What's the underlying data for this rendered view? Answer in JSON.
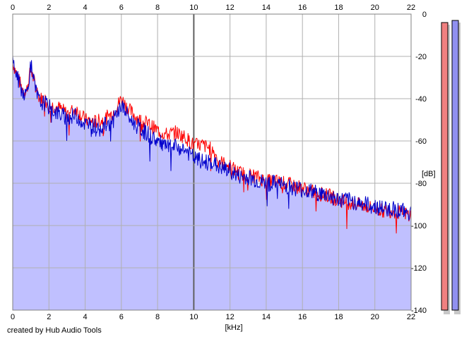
{
  "credit": "created by Hub Audio Tools",
  "colors": {
    "left_channel": "#ff0000",
    "right_channel": "#0000cc",
    "fill": "#c0c0ff",
    "grid": "#b0b0b0",
    "major_grid": "#606060",
    "meter_left": "#f08080",
    "meter_right": "#9090f0"
  },
  "chart_data": {
    "type": "line",
    "title": "",
    "xlabel": "[kHz]",
    "ylabel": "[dB]",
    "xlim": [
      0,
      22
    ],
    "ylim": [
      -140,
      0
    ],
    "x_ticks": [
      "0",
      "2",
      "4",
      "6",
      "8",
      "10",
      "12",
      "14",
      "16",
      "18",
      "20",
      "22"
    ],
    "y_ticks": [
      "0",
      "-20",
      "-40",
      "-60",
      "-80",
      "-100",
      "-120",
      "-140"
    ],
    "grid": true,
    "filled_area_under_right_channel": true,
    "series": [
      {
        "x": [
          0,
          0.25,
          0.5,
          0.75,
          1.0,
          1.25,
          1.5,
          1.75,
          2.0,
          2.5,
          3.0,
          3.5,
          4.0,
          4.5,
          5.0,
          5.5,
          6.0,
          6.5,
          7.0,
          7.5,
          8.0,
          8.5,
          9.0,
          9.5,
          10.0,
          10.5,
          11.0,
          11.5,
          12.0,
          12.5,
          13.0,
          13.5,
          14.0,
          14.5,
          15.0,
          15.5,
          16.0,
          16.5,
          17.0,
          17.5,
          18.0,
          18.5,
          19.0,
          19.5,
          20.0,
          20.5,
          21.0,
          21.5,
          22.0
        ],
        "values": [
          -23,
          -29,
          -35,
          -37,
          -26,
          -34,
          -40,
          -40,
          -43,
          -44,
          -47,
          -45,
          -50,
          -51,
          -50,
          -47,
          -40,
          -46,
          -50,
          -52,
          -55,
          -57,
          -56,
          -58,
          -62,
          -62,
          -64,
          -70,
          -72,
          -75,
          -76,
          -77,
          -79,
          -79,
          -80,
          -81,
          -82,
          -84,
          -85,
          -86,
          -88,
          -89,
          -90,
          -91,
          -92,
          -93,
          -93,
          -94,
          -95
        ]
      },
      {
        "x": [
          0,
          0.25,
          0.5,
          0.75,
          1.0,
          1.25,
          1.5,
          1.75,
          2.0,
          2.5,
          3.0,
          3.5,
          4.0,
          4.5,
          5.0,
          5.5,
          6.0,
          6.5,
          7.0,
          7.5,
          8.0,
          8.5,
          9.0,
          9.5,
          10.0,
          10.5,
          11.0,
          11.5,
          12.0,
          12.5,
          13.0,
          13.5,
          14.0,
          14.5,
          15.0,
          15.5,
          16.0,
          16.5,
          17.0,
          17.5,
          18.0,
          18.5,
          19.0,
          19.5,
          20.0,
          20.5,
          21.0,
          21.5,
          22.0
        ],
        "values": [
          -22,
          -30,
          -36,
          -38,
          -24,
          -36,
          -42,
          -42,
          -44,
          -47,
          -49,
          -48,
          -52,
          -53,
          -53,
          -51,
          -43,
          -50,
          -54,
          -57,
          -60,
          -63,
          -63,
          -64,
          -68,
          -70,
          -70,
          -73,
          -74,
          -77,
          -77,
          -79,
          -80,
          -80,
          -81,
          -82,
          -83,
          -84,
          -85,
          -86,
          -88,
          -88,
          -89,
          -90,
          -91,
          -92,
          -92,
          -93,
          -94
        ]
      }
    ],
    "level_meters": [
      {
        "value_db": -4
      },
      {
        "value_db": -3
      }
    ]
  }
}
